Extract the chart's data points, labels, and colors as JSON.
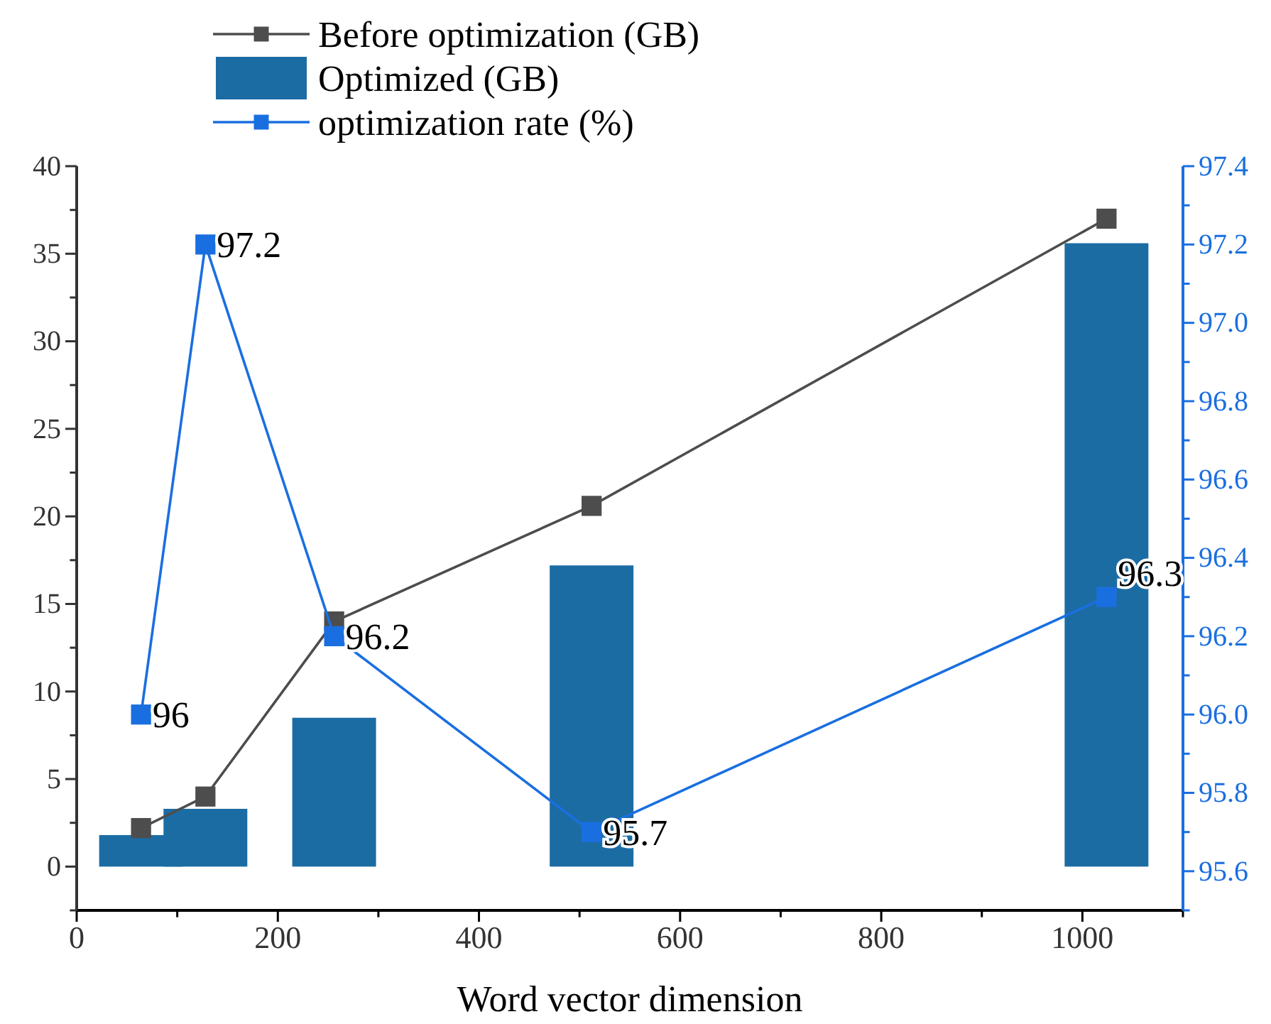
{
  "chart_data": {
    "type": "bar",
    "xlabel": "Word vector dimension",
    "x": [
      64,
      128,
      256,
      512,
      1024
    ],
    "xlim": [
      0,
      1100
    ],
    "xticks": [
      0,
      {
        "value": 100,
        "label": null
      },
      200,
      {
        "value": 300,
        "label": null
      },
      400,
      {
        "value": 500,
        "label": null
      },
      600,
      {
        "value": 700,
        "label": null
      },
      800,
      {
        "value": 900,
        "label": null
      },
      1000,
      {
        "value": 1100,
        "label": null
      }
    ],
    "ylim": [
      -2.5,
      40
    ],
    "yticks": [
      {
        "value": -2.5,
        "label": null
      },
      0,
      {
        "value": 2.5,
        "label": null
      },
      5,
      {
        "value": 7.5,
        "label": null
      },
      10,
      {
        "value": 12.5,
        "label": null
      },
      15,
      {
        "value": 17.5,
        "label": null
      },
      20,
      {
        "value": 22.5,
        "label": null
      },
      25,
      {
        "value": 27.5,
        "label": null
      },
      30,
      {
        "value": 32.5,
        "label": null
      },
      35,
      {
        "value": 37.5,
        "label": null
      },
      40
    ],
    "y2lim": [
      95.5,
      97.4
    ],
    "y2ticks": [
      {
        "value": 95.5,
        "label": null
      },
      "95.6",
      {
        "value": 95.7,
        "label": null
      },
      {
        "value": 95.8,
        "label": "95.8"
      },
      {
        "value": 95.9,
        "label": null
      },
      {
        "value": 96.0,
        "label": "96.0"
      },
      {
        "value": 96.1,
        "label": null
      },
      {
        "value": 96.2,
        "label": "96.2"
      },
      {
        "value": 96.3,
        "label": null
      },
      {
        "value": 96.4,
        "label": "96.4"
      },
      {
        "value": 96.5,
        "label": null
      },
      {
        "value": 96.6,
        "label": "96.6"
      },
      {
        "value": 96.7,
        "label": null
      },
      {
        "value": 96.8,
        "label": "96.8"
      },
      {
        "value": 96.9,
        "label": null
      },
      {
        "value": 97.0,
        "label": "97.0"
      },
      {
        "value": 97.1,
        "label": null
      },
      {
        "value": 97.2,
        "label": "97.2"
      },
      {
        "value": 97.3,
        "label": null
      },
      {
        "value": 97.4,
        "label": "97.4"
      }
    ],
    "legend": "top",
    "grid": false,
    "marker": "square",
    "series": [
      {
        "name": "Before optimization (GB)",
        "type": "line",
        "color": "#4d4d4d",
        "values": [
          2.2,
          4.0,
          14.0,
          20.6,
          37.0
        ]
      },
      {
        "name": "Optimized (GB)",
        "color": "#1c6ca4",
        "values": [
          1.8,
          3.3,
          8.5,
          17.2,
          35.6
        ]
      },
      {
        "name": "optimization rate (%)",
        "type": "line",
        "axis": "y2",
        "color": "#1a6fe0",
        "values": [
          96,
          97.2,
          96.2,
          95.7,
          96.3
        ],
        "value_labels": [
          "96",
          "97.2",
          "96.2",
          "95.7",
          "96.3"
        ]
      }
    ]
  }
}
